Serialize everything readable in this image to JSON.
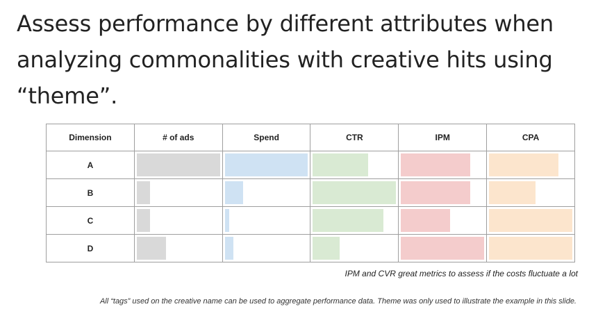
{
  "title": "Assess performance by different attributes when analyzing commonalities with creative hits using “theme”.",
  "table": {
    "columns": [
      {
        "key": "dimension",
        "label": "Dimension"
      },
      {
        "key": "ads",
        "label": "# of ads",
        "color": "#d9d9d9"
      },
      {
        "key": "spend",
        "label": "Spend",
        "color": "#cfe2f3"
      },
      {
        "key": "ctr",
        "label": "CTR",
        "color": "#d9ead3"
      },
      {
        "key": "ipm",
        "label": "IPM",
        "color": "#f4cccc"
      },
      {
        "key": "cpa",
        "label": "CPA",
        "color": "#fce5cd"
      }
    ],
    "rows": [
      {
        "label": "A",
        "levels": {
          "ads": 1.0,
          "spend": 1.0,
          "ctr": 0.66,
          "ipm": 0.83,
          "cpa": 0.83
        }
      },
      {
        "label": "B",
        "levels": {
          "ads": 0.16,
          "spend": 0.22,
          "ctr": 1.0,
          "ipm": 0.83,
          "cpa": 0.56
        }
      },
      {
        "label": "C",
        "levels": {
          "ads": 0.16,
          "spend": 0.05,
          "ctr": 0.85,
          "ipm": 0.59,
          "cpa": 1.0
        }
      },
      {
        "label": "D",
        "levels": {
          "ads": 0.35,
          "spend": 0.1,
          "ctr": 0.32,
          "ipm": 1.0,
          "cpa": 1.0
        }
      }
    ]
  },
  "note": "IPM and CVR great metrics to assess if the costs fluctuate a lot",
  "footnote": "All “tags” used on the creative name can be used to aggregate performance data. Theme was only used to illustrate the example in this slide."
}
